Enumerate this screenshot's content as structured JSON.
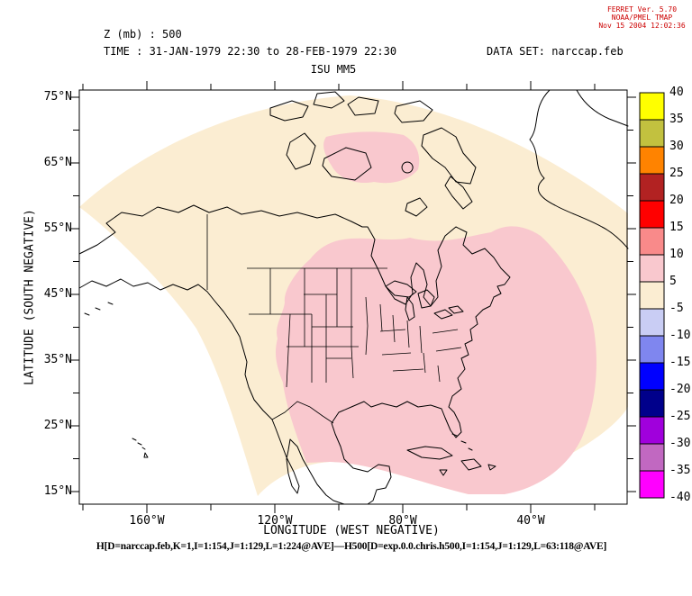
{
  "credit": {
    "line1": "FERRET Ver. 5.70",
    "line2": "NOAA/PMEL TMAP",
    "line3": "Nov 15 2004 12:02:36",
    "color": "#cc0000"
  },
  "title": {
    "line1": "Z (mb) : 500",
    "line2": "TIME : 31-JAN-1979 22:30 to 28-FEB-1979 22:30",
    "dataset": "DATA SET: narccap.feb",
    "subtitle": "ISU MM5"
  },
  "axes": {
    "y_label": "LATITUDE (SOUTH NEGATIVE)",
    "x_label": "LONGITUDE (WEST NEGATIVE)",
    "y_tick_labels": [
      "75°N",
      "65°N",
      "55°N",
      "45°N",
      "35°N",
      "25°N",
      "15°N"
    ],
    "x_tick_labels": [
      "160°W",
      "120°W",
      "80°W",
      "40°W"
    ]
  },
  "colorbar": {
    "labels": [
      "40",
      "35",
      "30",
      "25",
      "20",
      "15",
      "10",
      "5",
      "-5",
      "-10",
      "-15",
      "-20",
      "-25",
      "-30",
      "-35",
      "-40"
    ],
    "cells": [
      {
        "range": "35 to 40",
        "color": "#FFFF00"
      },
      {
        "range": "30 to 35",
        "color": "#C2C13F"
      },
      {
        "range": "25 to 30",
        "color": "#FF8300"
      },
      {
        "range": "20 to 25",
        "color": "#B22222"
      },
      {
        "range": "15 to 20",
        "color": "#FF0000"
      },
      {
        "range": "10 to 15",
        "color": "#F98A8A"
      },
      {
        "range": "5 to 10",
        "color": "#F9C8CE"
      },
      {
        "range": "-5 to 5",
        "color": "#FBEDD2"
      },
      {
        "range": "-10 to -5",
        "color": "#C9CDF4"
      },
      {
        "range": "-15 to -10",
        "color": "#7F86EF"
      },
      {
        "range": "-20 to -15",
        "color": "#0000FF"
      },
      {
        "range": "-25 to -20",
        "color": "#00008B"
      },
      {
        "range": "-30 to -25",
        "color": "#A000DC"
      },
      {
        "range": "-35 to -30",
        "color": "#C168C1"
      },
      {
        "range": "-40 to -35",
        "color": "#FF00FF"
      }
    ]
  },
  "map_colors": {
    "domain_fill": "#FBEDD2",
    "band_5_10_fill": "#F9C8CE",
    "coastline": "#000000",
    "outside": "#FFFFFF"
  },
  "footer": {
    "expression": "H[D=narccap.feb,K=1,I=1:154,J=1:129,L=1:224@AVE]—H500[D=exp.0.0.chris.h500,I=1:154,J=1:129,L=63:118@AVE]"
  },
  "chart_data": {
    "type": "heatmap",
    "title": "Z (mb) : 500",
    "subtitle": "ISU MM5",
    "time_range": "31-JAN-1979 22:30 to 28-FEB-1979 22:30",
    "dataset": "narccap.feb",
    "xlabel": "LONGITUDE (WEST NEGATIVE)",
    "ylabel": "LATITUDE (SOUTH NEGATIVE)",
    "xlim": [
      -181,
      -10
    ],
    "ylim": [
      13,
      76
    ],
    "x_major_ticks": [
      -160,
      -120,
      -80,
      -40
    ],
    "x_minor_tick_step": 20,
    "y_major_ticks": [
      75,
      65,
      55,
      45,
      35,
      25,
      15
    ],
    "y_minor_tick_step": 5,
    "contour_levels": [
      -40,
      -35,
      -30,
      -25,
      -20,
      -15,
      -10,
      -5,
      5,
      10,
      15,
      20,
      25,
      30,
      35,
      40
    ],
    "palette_top_to_bottom": [
      "#FFFF00",
      "#C2C13F",
      "#FF8300",
      "#B22222",
      "#FF0000",
      "#F98A8A",
      "#F9C8CE",
      "#FBEDD2",
      "#C9CDF4",
      "#7F86EF",
      "#0000FF",
      "#00008B",
      "#A000DC",
      "#C168C1",
      "#FF00FF"
    ],
    "legend_position": "right-colorbar",
    "observed_field": [
      {
        "band": "-5 to 5",
        "color": "#FBEDD2",
        "where": "most of the cone-shaped Lambert model domain: Alaska, western/northern Canada, Arctic islands, Pacific states, Baja, Greenland edge"
      },
      {
        "band": "5 to 10",
        "color": "#F9C8CE",
        "where": "central and eastern United States, Gulf of Mexico, Caribbean and western Atlantic up to Newfoundland; separate patch over Victoria Island / Nunavut"
      }
    ],
    "projection_note": "rectangular lon-lat window over a fan-shaped model domain; area outside domain is white"
  }
}
